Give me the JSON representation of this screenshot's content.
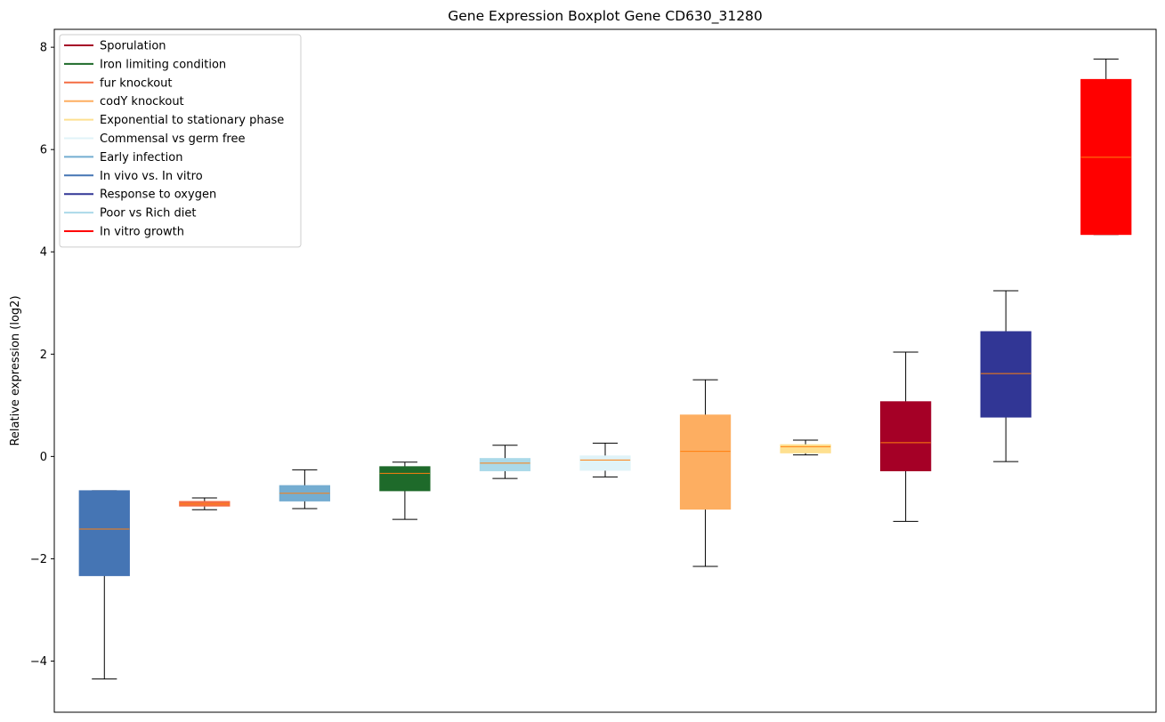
{
  "chart_data": {
    "type": "box",
    "title": "Gene Expression Boxplot Gene CD630_31280",
    "xlabel": "",
    "ylabel": "Relative expression (log2)",
    "ylim": [
      -5.0,
      8.35
    ],
    "yticks": [
      -4,
      -2,
      0,
      2,
      4,
      6,
      8
    ],
    "ytick_labels": [
      "−4",
      "−2",
      "0",
      "2",
      "4",
      "6",
      "8"
    ],
    "grid": false,
    "median_color": "#ff7f0e",
    "legend": {
      "placement": "upper-left",
      "entries": [
        {
          "label": "Sporulation",
          "color": "#a50026"
        },
        {
          "label": "Iron limiting condition",
          "color": "#1e6a2a"
        },
        {
          "label": "fur knockout",
          "color": "#f46d43"
        },
        {
          "label": "codY knockout",
          "color": "#fdae61"
        },
        {
          "label": "Exponential to stationary phase",
          "color": "#fee090"
        },
        {
          "label": "Commensal vs germ free",
          "color": "#e0f3f8"
        },
        {
          "label": "Early infection",
          "color": "#74add1"
        },
        {
          "label": "In vivo vs. In vitro",
          "color": "#4575b4"
        },
        {
          "label": "Response to oxygen",
          "color": "#313695"
        },
        {
          "label": "Poor vs Rich diet",
          "color": "#abd9e9"
        },
        {
          "label": "In vitro growth",
          "color": "#ff0000"
        }
      ]
    },
    "boxes": [
      {
        "condition": "In vivo vs. In vitro",
        "color": "#4575b4",
        "whisker_low": -4.35,
        "q1": -2.33,
        "median": -1.42,
        "q3": -0.67,
        "whisker_high": -0.67
      },
      {
        "condition": "fur knockout",
        "color": "#f46d43",
        "whisker_low": -1.04,
        "q1": -0.97,
        "median": -0.93,
        "q3": -0.88,
        "whisker_high": -0.81
      },
      {
        "condition": "Early infection",
        "color": "#74add1",
        "whisker_low": -1.02,
        "q1": -0.87,
        "median": -0.72,
        "q3": -0.57,
        "whisker_high": -0.26
      },
      {
        "condition": "Iron limiting condition",
        "color": "#1e6a2a",
        "whisker_low": -1.23,
        "q1": -0.67,
        "median": -0.33,
        "q3": -0.2,
        "whisker_high": -0.11
      },
      {
        "condition": "Poor vs Rich diet",
        "color": "#abd9e9",
        "whisker_low": -0.43,
        "q1": -0.28,
        "median": -0.13,
        "q3": -0.04,
        "whisker_high": 0.22
      },
      {
        "condition": "Commensal vs germ free",
        "color": "#e0f3f8",
        "whisker_low": -0.4,
        "q1": -0.27,
        "median": -0.07,
        "q3": 0.01,
        "whisker_high": 0.26
      },
      {
        "condition": "codY knockout",
        "color": "#fdae61",
        "whisker_low": -2.15,
        "q1": -1.03,
        "median": 0.1,
        "q3": 0.81,
        "whisker_high": 1.5
      },
      {
        "condition": "Exponential to stationary phase",
        "color": "#fee090",
        "whisker_low": 0.03,
        "q1": 0.07,
        "median": 0.19,
        "q3": 0.23,
        "whisker_high": 0.32
      },
      {
        "condition": "Sporulation",
        "color": "#a50026",
        "whisker_low": -1.27,
        "q1": -0.28,
        "median": 0.27,
        "q3": 1.07,
        "whisker_high": 2.04
      },
      {
        "condition": "Response to oxygen",
        "color": "#313695",
        "whisker_low": -0.1,
        "q1": 0.77,
        "median": 1.62,
        "q3": 2.44,
        "whisker_high": 3.24
      },
      {
        "condition": "In vitro growth",
        "color": "#ff0000",
        "whisker_low": 4.34,
        "q1": 4.34,
        "median": 5.85,
        "q3": 7.37,
        "whisker_high": 7.77
      }
    ]
  }
}
